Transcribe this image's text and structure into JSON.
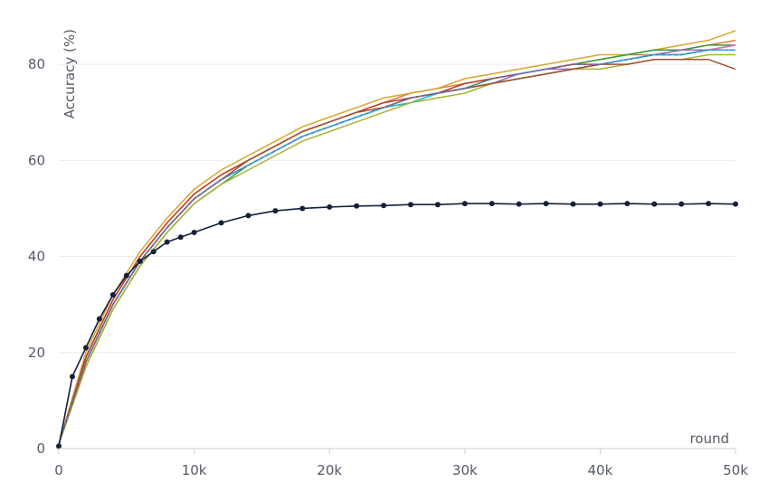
{
  "chart_data": {
    "type": "line",
    "title": "",
    "xlabel": "round",
    "ylabel": "Accuracy (%)",
    "xlim": [
      0,
      50000
    ],
    "ylim": [
      0,
      90
    ],
    "x_ticks": [
      0,
      10000,
      20000,
      30000,
      40000,
      50000
    ],
    "x_tick_labels": [
      "0",
      "10k",
      "20k",
      "30k",
      "40k",
      "50k"
    ],
    "y_ticks": [
      0,
      20,
      40,
      60,
      80
    ],
    "y_tick_labels": [
      "0",
      "20",
      "40",
      "60",
      "80"
    ],
    "grid": true,
    "legend": "none",
    "series": [
      {
        "color": "#e07b39",
        "style": "solid",
        "markers": false,
        "x": [
          0,
          2000,
          4000,
          6000,
          8000,
          10000,
          12000,
          14000,
          16000,
          18000,
          20000,
          22000,
          24000,
          26000,
          28000,
          30000,
          32000,
          34000,
          36000,
          38000,
          40000,
          42000,
          44000,
          46000,
          48000,
          50000
        ],
        "values": [
          1,
          19,
          31,
          40,
          47,
          53,
          57,
          60,
          63,
          66,
          68,
          70,
          72,
          74,
          75,
          76,
          77,
          78,
          79,
          80,
          81,
          82,
          82,
          83,
          84,
          85
        ]
      },
      {
        "color": "#d4a72c",
        "style": "solid",
        "markers": false,
        "x": [
          0,
          2000,
          4000,
          6000,
          8000,
          10000,
          12000,
          14000,
          16000,
          18000,
          20000,
          22000,
          24000,
          26000,
          28000,
          30000,
          32000,
          34000,
          36000,
          38000,
          40000,
          42000,
          44000,
          46000,
          48000,
          50000
        ],
        "values": [
          1,
          20,
          32,
          41,
          48,
          54,
          58,
          61,
          64,
          67,
          69,
          71,
          73,
          74,
          75,
          77,
          78,
          79,
          80,
          81,
          82,
          82,
          83,
          84,
          85,
          87
        ]
      },
      {
        "color": "#3a9a3a",
        "style": "solid",
        "markers": false,
        "x": [
          0,
          2000,
          4000,
          6000,
          8000,
          10000,
          12000,
          14000,
          16000,
          18000,
          20000,
          22000,
          24000,
          26000,
          28000,
          30000,
          32000,
          34000,
          36000,
          38000,
          40000,
          42000,
          44000,
          46000,
          48000,
          50000
        ],
        "values": [
          1,
          17,
          29,
          38,
          45,
          51,
          55,
          59,
          62,
          65,
          67,
          69,
          71,
          73,
          74,
          75,
          77,
          78,
          79,
          80,
          81,
          82,
          83,
          83,
          84,
          84
        ]
      },
      {
        "color": "#c0392b",
        "style": "solid",
        "markers": false,
        "x": [
          0,
          2000,
          4000,
          6000,
          8000,
          10000,
          12000,
          14000,
          16000,
          18000,
          20000,
          22000,
          24000,
          26000,
          28000,
          30000,
          32000,
          34000,
          36000,
          38000,
          40000,
          42000,
          44000,
          46000,
          48000,
          50000
        ],
        "values": [
          1,
          19,
          31,
          40,
          47,
          53,
          57,
          60,
          63,
          66,
          68,
          70,
          72,
          73,
          74,
          76,
          77,
          78,
          79,
          80,
          80,
          81,
          82,
          82,
          83,
          84
        ]
      },
      {
        "color": "#9467bd",
        "style": "solid",
        "markers": false,
        "x": [
          0,
          2000,
          4000,
          6000,
          8000,
          10000,
          12000,
          14000,
          16000,
          18000,
          20000,
          22000,
          24000,
          26000,
          28000,
          30000,
          32000,
          34000,
          36000,
          38000,
          40000,
          42000,
          44000,
          46000,
          48000,
          50000
        ],
        "values": [
          1,
          18,
          30,
          39,
          46,
          52,
          56,
          59,
          62,
          65,
          67,
          69,
          71,
          73,
          74,
          75,
          76,
          78,
          79,
          79,
          80,
          81,
          82,
          83,
          83,
          84
        ]
      },
      {
        "color": "#e377c2",
        "style": "solid",
        "markers": false,
        "x": [
          0,
          2000,
          4000,
          6000,
          8000,
          10000,
          12000,
          14000,
          16000,
          18000,
          20000,
          22000,
          24000,
          26000,
          28000,
          30000,
          32000,
          34000,
          36000,
          38000,
          40000,
          42000,
          44000,
          46000,
          48000,
          50000
        ],
        "values": [
          1,
          18,
          30,
          39,
          46,
          52,
          56,
          59,
          62,
          65,
          67,
          69,
          71,
          72,
          74,
          75,
          76,
          77,
          78,
          79,
          80,
          81,
          82,
          82,
          83,
          84
        ]
      },
      {
        "color": "#17becf",
        "style": "solid",
        "markers": false,
        "x": [
          0,
          2000,
          4000,
          6000,
          8000,
          10000,
          12000,
          14000,
          16000,
          18000,
          20000,
          22000,
          24000,
          26000,
          28000,
          30000,
          32000,
          34000,
          36000,
          38000,
          40000,
          42000,
          44000,
          46000,
          48000,
          50000
        ],
        "values": [
          1,
          18,
          30,
          39,
          46,
          52,
          56,
          59,
          62,
          65,
          67,
          69,
          71,
          72,
          74,
          75,
          76,
          77,
          78,
          79,
          80,
          81,
          82,
          82,
          83,
          83
        ]
      },
      {
        "color": "#a7b233",
        "style": "solid",
        "markers": false,
        "x": [
          0,
          2000,
          4000,
          6000,
          8000,
          10000,
          12000,
          14000,
          16000,
          18000,
          20000,
          22000,
          24000,
          26000,
          28000,
          30000,
          32000,
          34000,
          36000,
          38000,
          40000,
          42000,
          44000,
          46000,
          48000,
          50000
        ],
        "values": [
          1,
          17,
          29,
          38,
          45,
          51,
          55,
          58,
          61,
          64,
          66,
          68,
          70,
          72,
          73,
          74,
          76,
          77,
          78,
          79,
          79,
          80,
          81,
          81,
          82,
          82
        ]
      },
      {
        "color": "#a0522d",
        "style": "solid",
        "markers": false,
        "x": [
          0,
          2000,
          4000,
          6000,
          8000,
          10000,
          12000,
          14000,
          16000,
          18000,
          20000,
          22000,
          24000,
          26000,
          28000,
          30000,
          32000,
          34000,
          36000,
          38000,
          40000,
          42000,
          44000,
          46000,
          48000,
          50000
        ],
        "values": [
          1,
          18,
          30,
          39,
          46,
          52,
          56,
          60,
          63,
          66,
          68,
          70,
          71,
          73,
          74,
          75,
          76,
          77,
          78,
          79,
          80,
          80,
          81,
          81,
          81,
          79
        ]
      },
      {
        "color": "#4a7fd4",
        "style": "dashed",
        "markers": false,
        "x": [
          0,
          2000,
          4000,
          6000,
          8000,
          10000,
          12000,
          14000,
          16000,
          18000,
          20000,
          22000,
          24000,
          26000,
          28000,
          30000,
          32000,
          34000,
          36000,
          38000,
          40000,
          42000,
          44000,
          46000,
          48000,
          50000
        ],
        "values": [
          1,
          18,
          30,
          39,
          46,
          52,
          56,
          59,
          62,
          65,
          67,
          69,
          71,
          73,
          74,
          75,
          77,
          78,
          79,
          80,
          80,
          81,
          82,
          82,
          83,
          83
        ]
      },
      {
        "color": "#14213d",
        "style": "solid",
        "markers": true,
        "x": [
          0,
          1000,
          2000,
          3000,
          4000,
          5000,
          6000,
          7000,
          8000,
          9000,
          10000,
          12000,
          14000,
          16000,
          18000,
          20000,
          22000,
          24000,
          26000,
          28000,
          30000,
          32000,
          34000,
          36000,
          38000,
          40000,
          42000,
          44000,
          46000,
          48000,
          50000
        ],
        "values": [
          0.5,
          15,
          21,
          27,
          32,
          36,
          39,
          41,
          43,
          44,
          45,
          47,
          48.5,
          49.5,
          50,
          50.3,
          50.5,
          50.6,
          50.8,
          50.8,
          51,
          51,
          50.9,
          51,
          50.9,
          50.9,
          51,
          50.9,
          50.9,
          51,
          50.9
        ]
      }
    ]
  }
}
